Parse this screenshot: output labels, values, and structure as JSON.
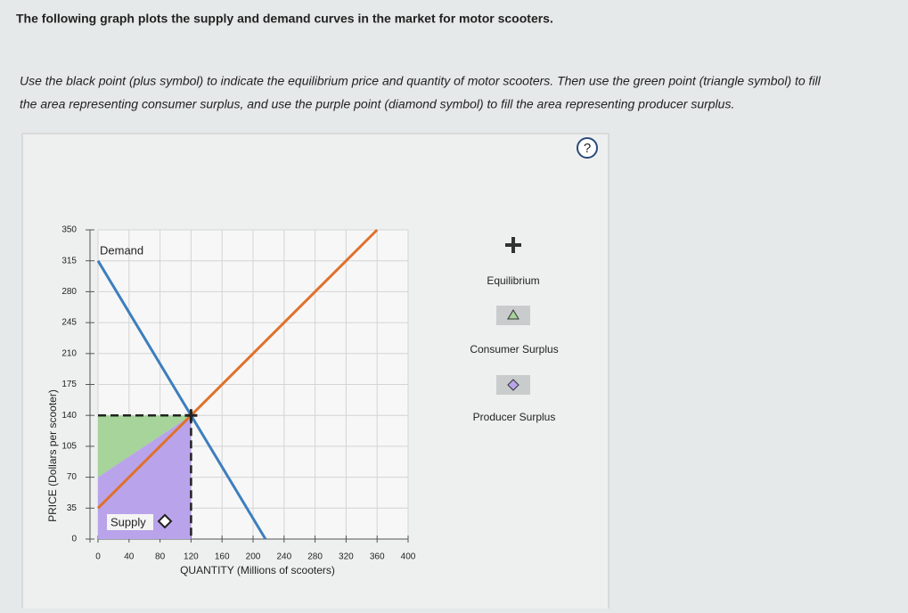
{
  "header": {
    "title": "The following graph plots the supply and demand curves in the market for motor scooters."
  },
  "instructions": [
    "Use the black point (plus symbol) to indicate the equilibrium price and quantity of motor scooters. Then use the green point (triangle symbol) to fill",
    "the area representing consumer surplus, and use the purple point (diamond symbol) to fill the area representing producer surplus."
  ],
  "help": "?",
  "tools": [
    "Equilibrium",
    "Consumer Surplus",
    "Producer Surplus"
  ],
  "chart_data": {
    "type": "line",
    "xlabel": "QUANTITY (Millions of scooters)",
    "ylabel": "PRICE (Dollars per scooter)",
    "xlim": [
      0,
      400
    ],
    "ylim": [
      0,
      350
    ],
    "xticks": [
      0,
      40,
      80,
      120,
      160,
      200,
      240,
      280,
      320,
      360,
      400
    ],
    "yticks": [
      0,
      35,
      70,
      105,
      140,
      175,
      210,
      245,
      280,
      315,
      350
    ],
    "grid": true,
    "series": [
      {
        "name": "Demand",
        "color": "#3d7ebd",
        "x": [
          0,
          216
        ],
        "values": [
          315,
          0
        ]
      },
      {
        "name": "Supply",
        "color": "#e0712b",
        "x": [
          0,
          360
        ],
        "values": [
          35,
          350
        ]
      }
    ],
    "equilibrium": {
      "x": 120,
      "y": 140
    },
    "consumer_surplus": {
      "color": "#a6d49a",
      "x": [
        0,
        120,
        0
      ],
      "values": [
        140,
        140,
        70
      ]
    },
    "producer_surplus": {
      "color": "#b9a3ea",
      "x": [
        0,
        120,
        120,
        0
      ],
      "values": [
        70,
        140,
        0,
        0
      ]
    }
  }
}
